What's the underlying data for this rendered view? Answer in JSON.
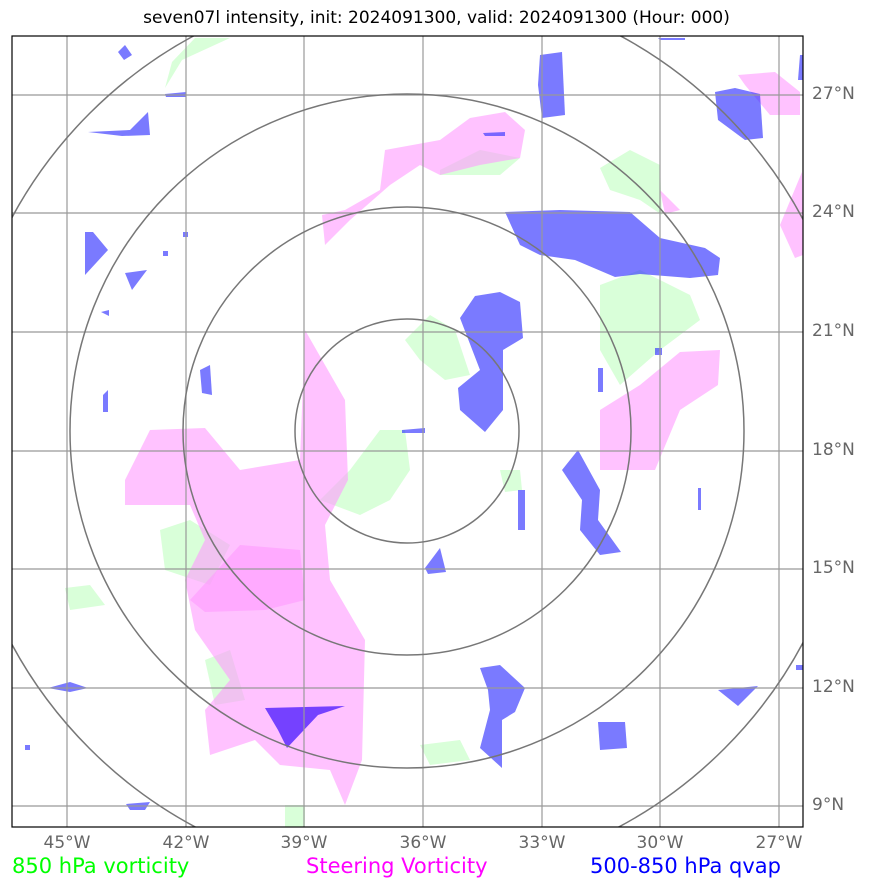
{
  "title": "seven07l intensity, init: 2024091300, valid: 2024091300 (Hour: 000)",
  "axes": {
    "lat_labels": [
      "27°N",
      "24°N",
      "21°N",
      "18°N",
      "15°N",
      "12°N",
      "9°N"
    ],
    "lon_labels": [
      "45°W",
      "42°W",
      "39°W",
      "36°W",
      "33°W",
      "30°W",
      "27°W"
    ]
  },
  "legend": {
    "vorticity_850": {
      "label": "850 hPa vorticity",
      "color": "#00ff00"
    },
    "steering": {
      "label": "Steering Vorticity",
      "color": "#ff00ff"
    },
    "qvap": {
      "label": "500-850 hPa qvap",
      "color": "#0000ff"
    }
  },
  "map_data": {
    "lon_range": [
      -46.4,
      -26.4
    ],
    "lat_range": [
      8.5,
      28.5
    ],
    "center": {
      "lon": -36.4,
      "lat": 18.6
    },
    "range_rings_deg": [
      2.7,
      5.6,
      8.4,
      11.3
    ],
    "colors": {
      "vorticity_fill": "#ccffcc",
      "steering_fill": "#ff99ff",
      "qvap_fill": "#3333ff",
      "grid": "#999999",
      "ring": "#777777"
    }
  }
}
